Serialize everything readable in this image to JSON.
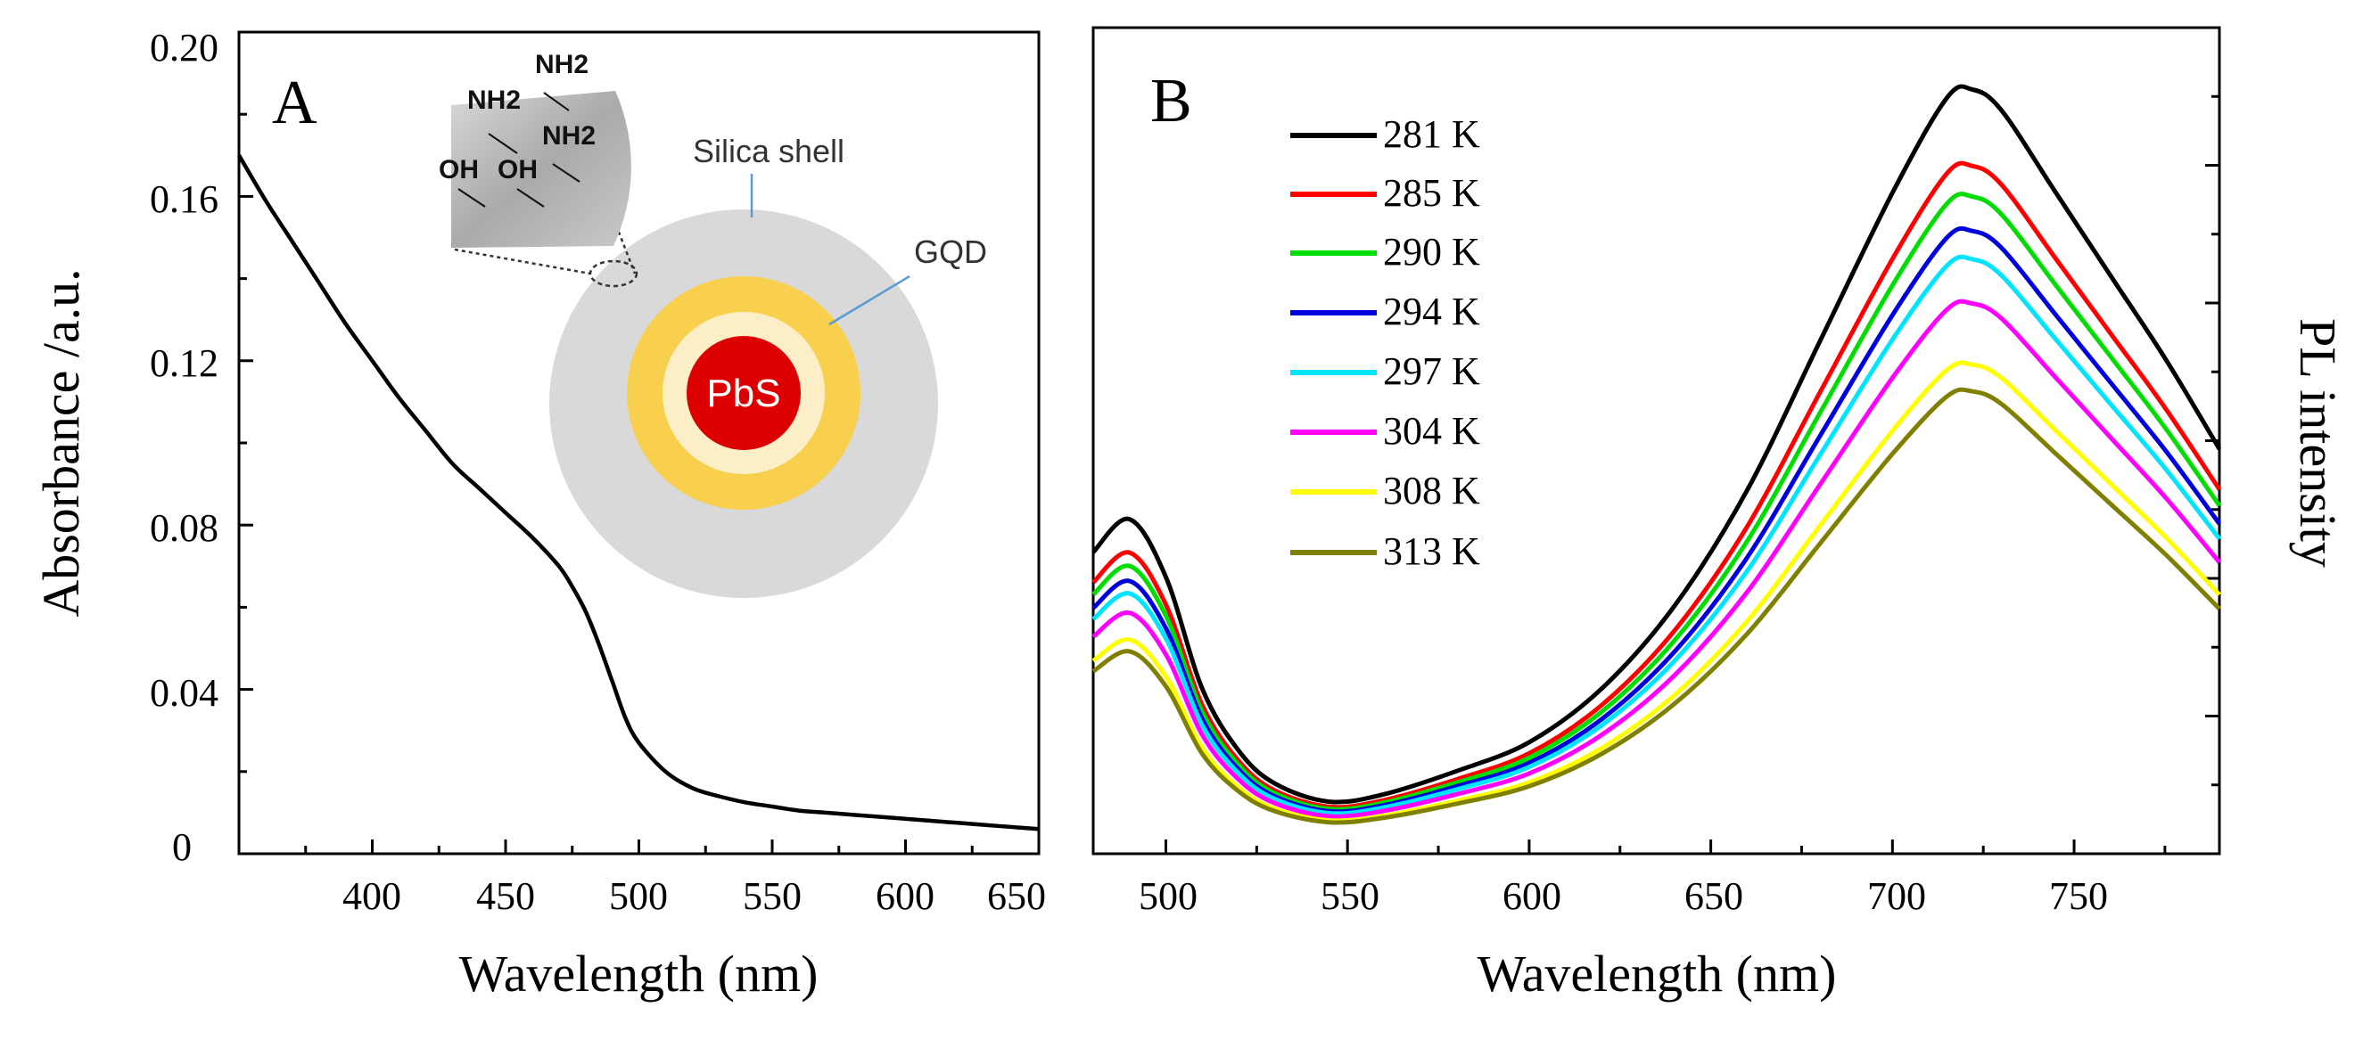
{
  "chart_data": [
    {
      "type": "line",
      "panel_label": "A",
      "xlabel": "Wavelength (nm)",
      "ylabel": "Absorbance /a.u.",
      "xlim": [
        350,
        650
      ],
      "ylim": [
        0,
        0.2
      ],
      "x_ticks": [
        "400",
        "450",
        "500",
        "550",
        "600",
        "650"
      ],
      "y_ticks": [
        "0",
        "0.04",
        "0.08",
        "0.12",
        "0.16",
        "0.20"
      ],
      "series": [
        {
          "name": "absorbance",
          "color": "#000000",
          "x": [
            350,
            360,
            370,
            380,
            390,
            400,
            410,
            420,
            430,
            440,
            450,
            460,
            470,
            475,
            480,
            485,
            490,
            495,
            500,
            510,
            520,
            530,
            540,
            550,
            560,
            570,
            580,
            590,
            600,
            610,
            620,
            630,
            640,
            650
          ],
          "y": [
            0.17,
            0.159,
            0.149,
            0.139,
            0.129,
            0.12,
            0.111,
            0.103,
            0.095,
            0.089,
            0.083,
            0.077,
            0.07,
            0.065,
            0.059,
            0.051,
            0.042,
            0.033,
            0.027,
            0.02,
            0.016,
            0.014,
            0.0125,
            0.0115,
            0.0105,
            0.01,
            0.0095,
            0.009,
            0.0085,
            0.008,
            0.0075,
            0.007,
            0.0065,
            0.006
          ]
        }
      ],
      "inset": {
        "core_label": "PbS",
        "shell_label": "Silica shell",
        "gqd_label": "GQD",
        "groups": [
          "NH2",
          "NH2",
          "NH2",
          "OH",
          "OH"
        ],
        "colors": {
          "shell": "#d9d9d9",
          "gqd": "#f8d04e",
          "inner_ring": "#fcefc8",
          "core": "#dd0000"
        }
      }
    },
    {
      "type": "line",
      "panel_label": "B",
      "xlabel": "Wavelength (nm)",
      "ylabel": "PL intensity",
      "xlim": [
        480,
        790
      ],
      "ylim": [
        0,
        1
      ],
      "x_ticks": [
        "500",
        "550",
        "600",
        "650",
        "700",
        "750"
      ],
      "key_x": [
        480,
        490,
        500,
        510,
        520,
        530,
        545,
        560,
        580,
        600,
        620,
        640,
        660,
        680,
        700,
        715,
        722,
        730,
        745,
        760,
        775,
        790
      ],
      "key_shape": [
        0.365,
        0.405,
        0.335,
        0.2,
        0.125,
        0.085,
        0.063,
        0.072,
        0.1,
        0.135,
        0.2,
        0.3,
        0.44,
        0.62,
        0.8,
        0.915,
        0.925,
        0.9,
        0.8,
        0.7,
        0.6,
        0.49
      ],
      "series": [
        {
          "name": "281 K",
          "color": "#000000",
          "scale": 1.0
        },
        {
          "name": "285 K",
          "color": "#ff0000",
          "scale": 0.9
        },
        {
          "name": "290 K",
          "color": "#00dd00",
          "scale": 0.86
        },
        {
          "name": "294 K",
          "color": "#0000dd",
          "scale": 0.815
        },
        {
          "name": "297 K",
          "color": "#00e5ff",
          "scale": 0.778
        },
        {
          "name": "304 K",
          "color": "#ff00ff",
          "scale": 0.72
        },
        {
          "name": "308 K",
          "color": "#ffff00",
          "scale": 0.64
        },
        {
          "name": "313 K",
          "color": "#808000",
          "scale": 0.605
        }
      ]
    }
  ]
}
